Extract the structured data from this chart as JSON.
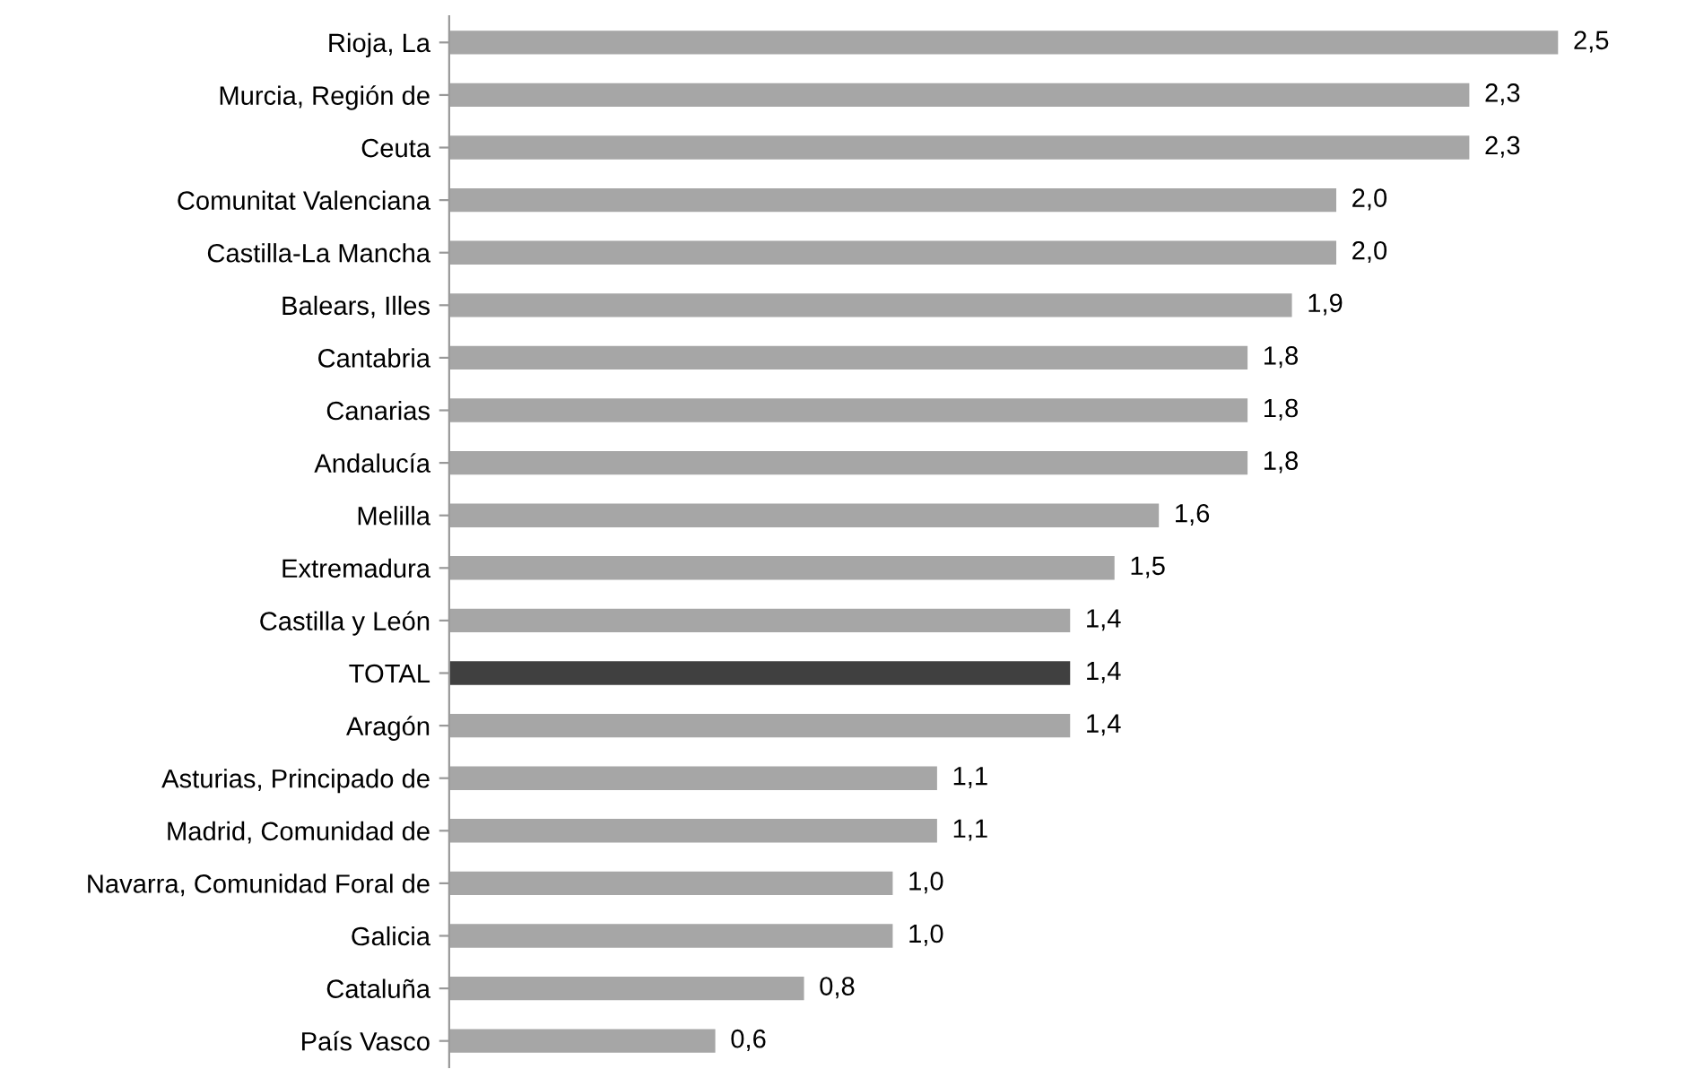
{
  "chart_data": {
    "type": "bar",
    "orientation": "horizontal",
    "categories": [
      "Rioja, La",
      "Murcia, Región de",
      "Ceuta",
      "Comunitat Valenciana",
      "Castilla-La Mancha",
      "Balears, Illes",
      "Cantabria",
      "Canarias",
      "Andalucía",
      "Melilla",
      "Extremadura",
      "Castilla y León",
      "TOTAL",
      "Aragón",
      "Asturias, Principado de",
      "Madrid, Comunidad de",
      "Navarra, Comunidad Foral de",
      "Galicia",
      "Cataluña",
      "País Vasco"
    ],
    "values": [
      2.5,
      2.3,
      2.3,
      2.0,
      2.0,
      1.9,
      1.8,
      1.8,
      1.8,
      1.6,
      1.5,
      1.4,
      1.4,
      1.4,
      1.1,
      1.1,
      1.0,
      1.0,
      0.8,
      0.6
    ],
    "value_labels": [
      "2,5",
      "2,3",
      "2,3",
      "2,0",
      "2,0",
      "1,9",
      "1,8",
      "1,8",
      "1,8",
      "1,6",
      "1,5",
      "1,4",
      "1,4",
      "1,4",
      "1,1",
      "1,1",
      "1,0",
      "1,0",
      "0,8",
      "0,6"
    ],
    "colors": [
      "#a6a6a6",
      "#a6a6a6",
      "#a6a6a6",
      "#a6a6a6",
      "#a6a6a6",
      "#a6a6a6",
      "#a6a6a6",
      "#a6a6a6",
      "#a6a6a6",
      "#a6a6a6",
      "#a6a6a6",
      "#a6a6a6",
      "#404040",
      "#a6a6a6",
      "#a6a6a6",
      "#a6a6a6",
      "#a6a6a6",
      "#a6a6a6",
      "#a6a6a6",
      "#a6a6a6"
    ],
    "legend": false
  }
}
